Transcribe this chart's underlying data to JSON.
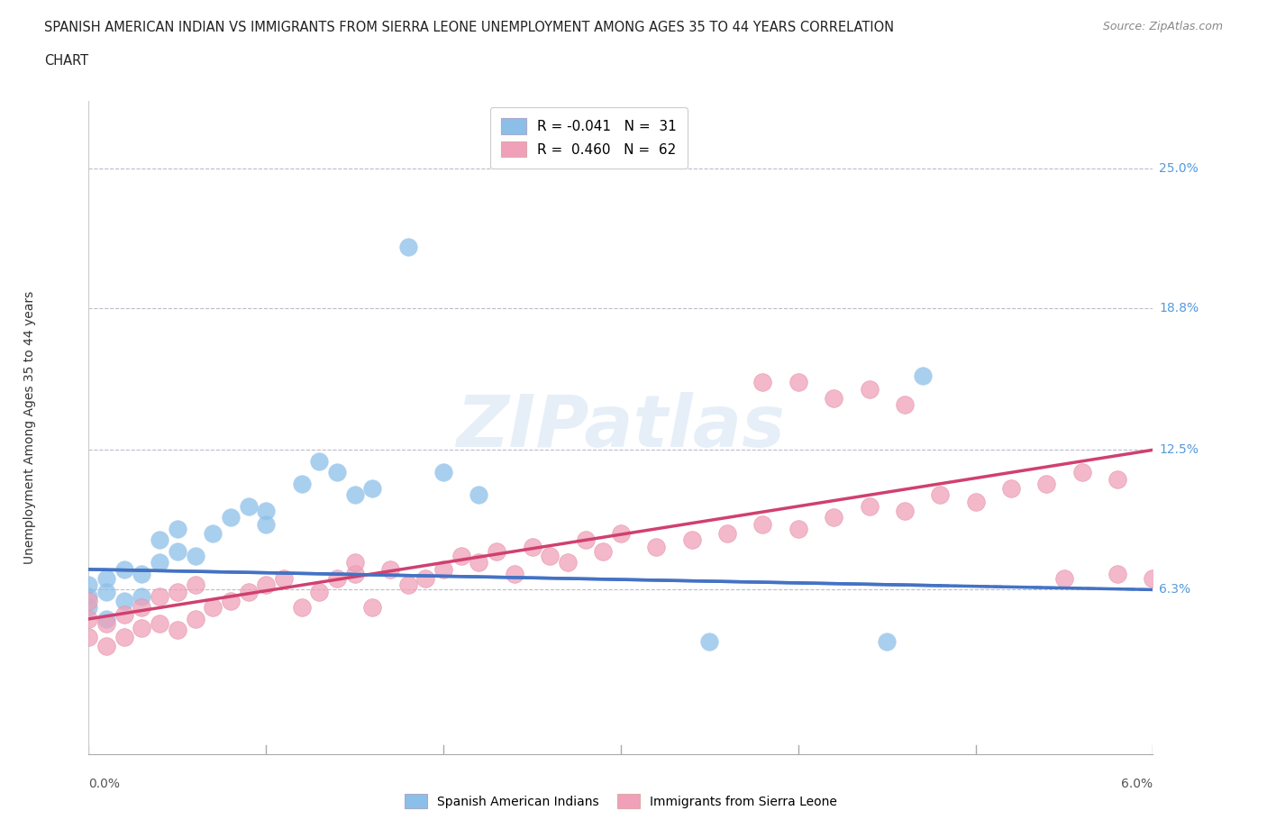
{
  "title_line1": "SPANISH AMERICAN INDIAN VS IMMIGRANTS FROM SIERRA LEONE UNEMPLOYMENT AMONG AGES 35 TO 44 YEARS CORRELATION",
  "title_line2": "CHART",
  "source_text": "Source: ZipAtlas.com",
  "xlabel_bottom_left": "0.0%",
  "xlabel_bottom_right": "6.0%",
  "ylabel": "Unemployment Among Ages 35 to 44 years",
  "xmin": 0.0,
  "xmax": 0.06,
  "ymin": -0.01,
  "ymax": 0.28,
  "yticks": [
    0.063,
    0.125,
    0.188,
    0.25
  ],
  "ytick_labels": [
    "6.3%",
    "12.5%",
    "18.8%",
    "25.0%"
  ],
  "legend_label_1": "Spanish American Indians",
  "legend_label_2": "Immigrants from Sierra Leone",
  "blue_color": "#8bbfe8",
  "pink_color": "#f0a0b8",
  "blue_line_color": "#4472c4",
  "pink_line_color": "#d04070",
  "background_color": "#ffffff",
  "blue_trend_x0": 0.0,
  "blue_trend_y0": 0.072,
  "blue_trend_x1": 0.06,
  "blue_trend_y1": 0.063,
  "pink_trend_x0": 0.0,
  "pink_trend_y0": 0.05,
  "pink_trend_x1": 0.06,
  "pink_trend_y1": 0.125,
  "blue_x": [
    0.0,
    0.0,
    0.0,
    0.001,
    0.001,
    0.001,
    0.002,
    0.002,
    0.003,
    0.003,
    0.004,
    0.004,
    0.005,
    0.005,
    0.006,
    0.007,
    0.008,
    0.009,
    0.01,
    0.01,
    0.012,
    0.013,
    0.014,
    0.015,
    0.016,
    0.018,
    0.02,
    0.022,
    0.035,
    0.045,
    0.047
  ],
  "blue_y": [
    0.055,
    0.06,
    0.065,
    0.05,
    0.062,
    0.068,
    0.058,
    0.072,
    0.06,
    0.07,
    0.075,
    0.085,
    0.08,
    0.09,
    0.078,
    0.088,
    0.095,
    0.1,
    0.092,
    0.098,
    0.11,
    0.12,
    0.115,
    0.105,
    0.108,
    0.215,
    0.115,
    0.105,
    0.04,
    0.04,
    0.158
  ],
  "pink_x": [
    0.0,
    0.0,
    0.0,
    0.001,
    0.001,
    0.002,
    0.002,
    0.003,
    0.003,
    0.004,
    0.004,
    0.005,
    0.005,
    0.006,
    0.006,
    0.007,
    0.008,
    0.009,
    0.01,
    0.011,
    0.012,
    0.013,
    0.014,
    0.015,
    0.015,
    0.016,
    0.017,
    0.018,
    0.019,
    0.02,
    0.021,
    0.022,
    0.023,
    0.024,
    0.025,
    0.026,
    0.027,
    0.028,
    0.029,
    0.03,
    0.032,
    0.034,
    0.036,
    0.038,
    0.04,
    0.042,
    0.044,
    0.046,
    0.048,
    0.05,
    0.052,
    0.054,
    0.056,
    0.058,
    0.038,
    0.04,
    0.042,
    0.044,
    0.046,
    0.055,
    0.058,
    0.06
  ],
  "pink_y": [
    0.042,
    0.05,
    0.058,
    0.038,
    0.048,
    0.042,
    0.052,
    0.046,
    0.055,
    0.048,
    0.06,
    0.045,
    0.062,
    0.05,
    0.065,
    0.055,
    0.058,
    0.062,
    0.065,
    0.068,
    0.055,
    0.062,
    0.068,
    0.07,
    0.075,
    0.055,
    0.072,
    0.065,
    0.068,
    0.072,
    0.078,
    0.075,
    0.08,
    0.07,
    0.082,
    0.078,
    0.075,
    0.085,
    0.08,
    0.088,
    0.082,
    0.085,
    0.088,
    0.092,
    0.09,
    0.095,
    0.1,
    0.098,
    0.105,
    0.102,
    0.108,
    0.11,
    0.115,
    0.112,
    0.155,
    0.155,
    0.148,
    0.152,
    0.145,
    0.068,
    0.07,
    0.068
  ]
}
